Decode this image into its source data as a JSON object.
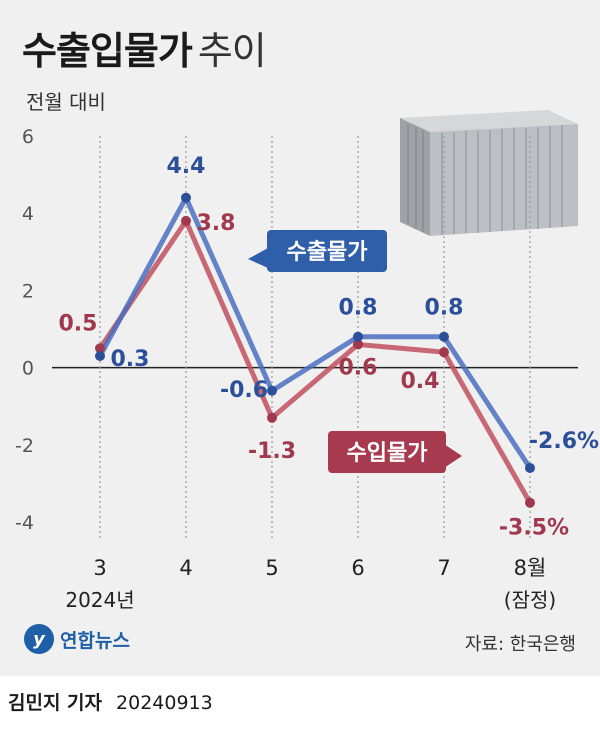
{
  "title_bold": "수출입물가",
  "title_light": "추이",
  "subtitle": "전월 대비",
  "chart_data": {
    "type": "line",
    "categories": [
      "3",
      "4",
      "5",
      "6",
      "7",
      "8월"
    ],
    "category_sublabels": [
      "2024년",
      "",
      "",
      "",
      "",
      "(잠정)"
    ],
    "ylim": [
      -4,
      6
    ],
    "yticks": [
      -4,
      -2,
      0,
      2,
      4,
      6
    ],
    "series": [
      {
        "name": "수출물가",
        "color": "#4a6ec0",
        "values": [
          0.3,
          4.4,
          -0.6,
          0.8,
          0.8,
          -2.6
        ],
        "labels": [
          "0.3",
          "4.4",
          "-0.6",
          "0.8",
          "0.8",
          "-2.6%"
        ]
      },
      {
        "name": "수입물가",
        "color": "#c0505e",
        "values": [
          0.5,
          3.8,
          -1.3,
          0.6,
          0.4,
          -3.5
        ],
        "labels": [
          "0.5",
          "3.8",
          "-1.3",
          "0.6",
          "0.4",
          "-3.5%"
        ]
      }
    ]
  },
  "source": "자료: 한국은행",
  "logo_text": "연합뉴스",
  "logo_mark": "y",
  "credit_name": "김민지 기자",
  "credit_date": "20240913"
}
